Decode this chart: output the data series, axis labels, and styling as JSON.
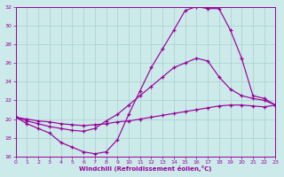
{
  "xlabel": "Windchill (Refroidissement éolien,°C)",
  "xlim": [
    0,
    23
  ],
  "ylim": [
    16,
    32
  ],
  "xtick_vals": [
    0,
    1,
    2,
    3,
    4,
    5,
    6,
    7,
    8,
    9,
    10,
    11,
    12,
    13,
    14,
    15,
    16,
    17,
    18,
    19,
    20,
    21,
    22,
    23
  ],
  "ytick_vals": [
    16,
    18,
    20,
    22,
    24,
    26,
    28,
    30,
    32
  ],
  "bg_color": "#cceaea",
  "line_color": "#990099",
  "grid_color": "#aacece",
  "line1_y": [
    20.2,
    19.5,
    19.0,
    18.5,
    17.5,
    17.0,
    16.5,
    16.3,
    16.5,
    17.8,
    20.5,
    23.0,
    25.5,
    27.5,
    29.5,
    31.6,
    32.0,
    31.8,
    31.8,
    29.5,
    26.5,
    22.5,
    22.2,
    21.5
  ],
  "line2_y": [
    20.2,
    19.8,
    19.5,
    19.2,
    19.0,
    18.8,
    18.7,
    19.0,
    19.8,
    20.5,
    21.5,
    22.5,
    23.5,
    24.5,
    25.5,
    26.0,
    26.5,
    26.2,
    24.5,
    23.2,
    22.5,
    22.2,
    22.0,
    21.5
  ],
  "line3_y": [
    20.2,
    20.0,
    19.8,
    19.7,
    19.5,
    19.4,
    19.3,
    19.4,
    19.5,
    19.7,
    19.8,
    20.0,
    20.2,
    20.4,
    20.6,
    20.8,
    21.0,
    21.2,
    21.4,
    21.5,
    21.5,
    21.4,
    21.3,
    21.5
  ]
}
